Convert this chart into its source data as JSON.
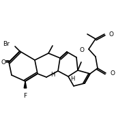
{
  "bg_color": "#ffffff",
  "line_color": "#000000",
  "lw": 1.2,
  "fs": 6.5,
  "figsize": [
    1.7,
    1.67
  ],
  "dpi": 100,
  "atoms": {
    "Br": "Br",
    "O_ketone": "O",
    "F": "F",
    "H1": "H",
    "H2": "H",
    "O_ester1": "O",
    "O_ester2": "O",
    "O_ac": "O"
  }
}
